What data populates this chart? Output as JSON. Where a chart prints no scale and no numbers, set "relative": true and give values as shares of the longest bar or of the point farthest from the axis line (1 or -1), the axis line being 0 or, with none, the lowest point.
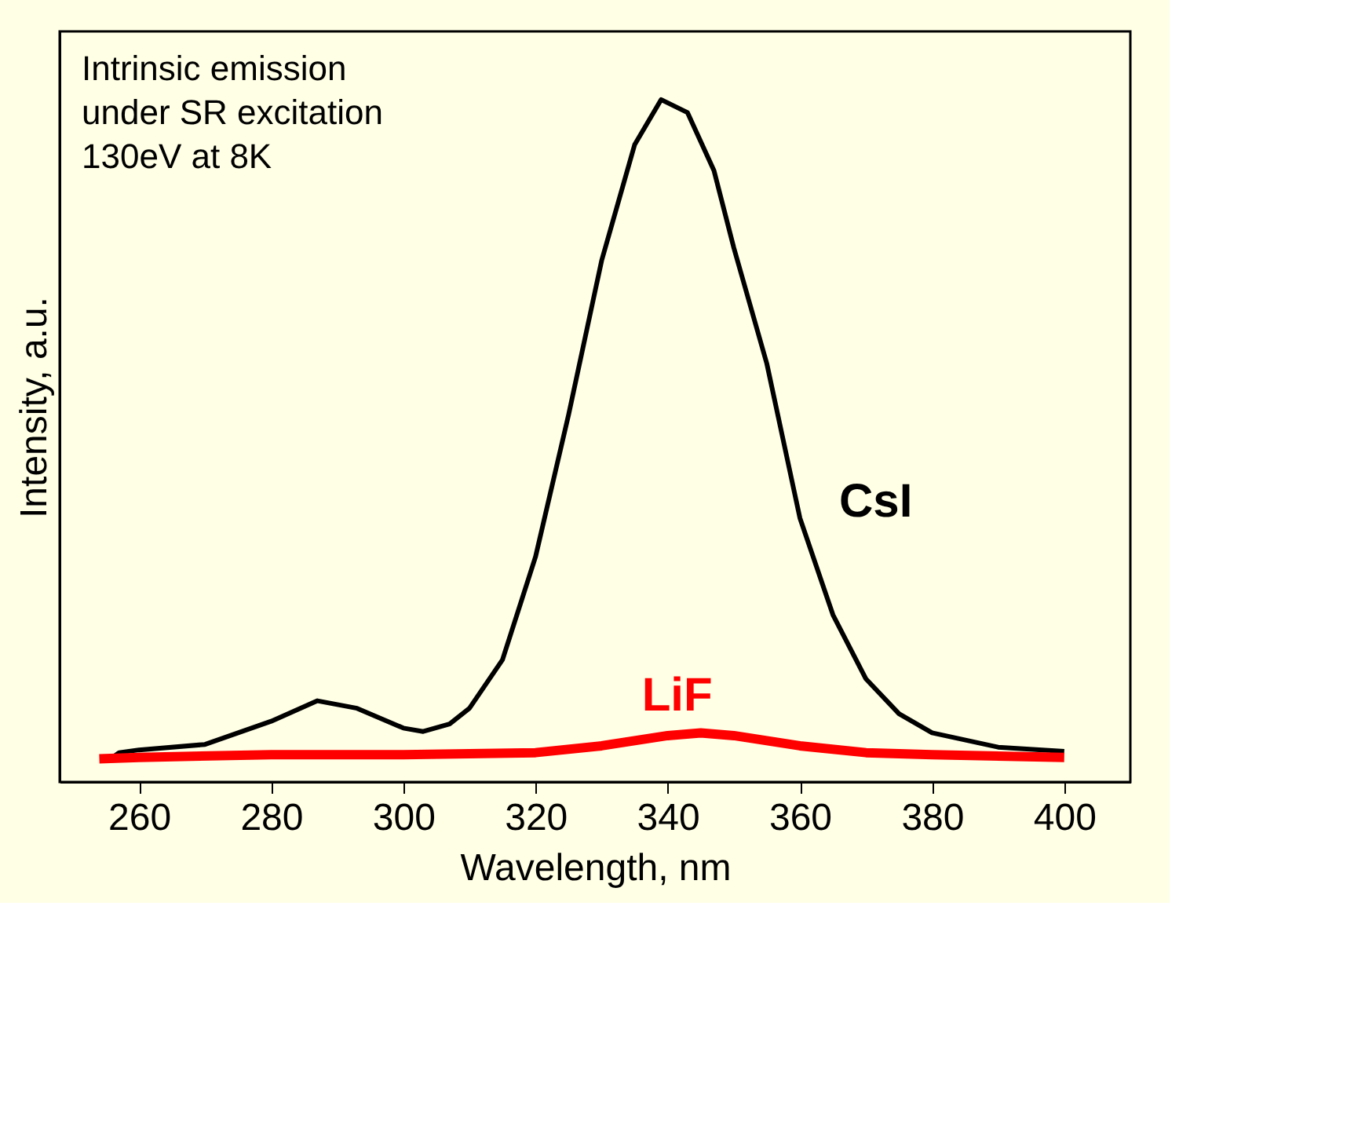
{
  "chart_data": {
    "type": "line",
    "relative": true,
    "xlabel": "Wavelength, nm",
    "ylabel": "Intensity, a.u.",
    "annotations": [
      "Intrinsic emission\nunder SR excitation\n130eV  at 8K"
    ],
    "xlim": [
      248,
      410
    ],
    "xticks": [
      260,
      280,
      300,
      320,
      340,
      360,
      380,
      400
    ],
    "grid": false,
    "marker": "none",
    "line_style": "solid",
    "series": [
      {
        "name": "CsI",
        "color": "#000000",
        "x": [
          256,
          257,
          260,
          270,
          280,
          287,
          293,
          300,
          303,
          307,
          310,
          315,
          320,
          325,
          330,
          335,
          339,
          343,
          347,
          350,
          355,
          360,
          365,
          370,
          375,
          380,
          390,
          400
        ],
        "values": [
          0.036,
          0.043,
          0.047,
          0.055,
          0.089,
          0.119,
          0.108,
          0.079,
          0.074,
          0.085,
          0.108,
          0.179,
          0.33,
          0.538,
          0.764,
          0.934,
          1.0,
          0.981,
          0.896,
          0.783,
          0.613,
          0.387,
          0.245,
          0.151,
          0.1,
          0.072,
          0.051,
          0.045
        ]
      },
      {
        "name": "LiF",
        "color": "#ff0000",
        "x": [
          254,
          260,
          280,
          300,
          320,
          330,
          340,
          345,
          350,
          360,
          370,
          380,
          400
        ],
        "values": [
          0.034,
          0.036,
          0.04,
          0.04,
          0.043,
          0.053,
          0.068,
          0.072,
          0.068,
          0.053,
          0.043,
          0.04,
          0.036
        ]
      }
    ]
  }
}
